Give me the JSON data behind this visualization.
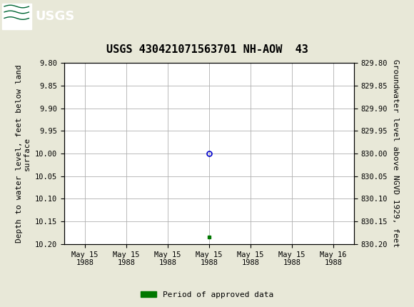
{
  "title": "USGS 430421071563701 NH-AOW  43",
  "ylabel_left": "Depth to water level, feet below land\nsurface",
  "ylabel_right": "Groundwater level above NGVD 1929, feet",
  "ylim_left": [
    9.8,
    10.2
  ],
  "ylim_right": [
    829.8,
    830.2
  ],
  "y_ticks_left": [
    9.8,
    9.85,
    9.9,
    9.95,
    10.0,
    10.05,
    10.1,
    10.15,
    10.2
  ],
  "y_ticks_right": [
    829.8,
    829.85,
    829.9,
    829.95,
    830.0,
    830.05,
    830.1,
    830.15,
    830.2
  ],
  "data_point_x": 3,
  "data_point_y": 10.0,
  "green_marker_x": 3,
  "green_marker_y": 10.185,
  "x_tick_labels": [
    "May 15\n1988",
    "May 15\n1988",
    "May 15\n1988",
    "May 15\n1988",
    "May 15\n1988",
    "May 15\n1988",
    "May 16\n1988"
  ],
  "x_ticks": [
    0,
    1,
    2,
    3,
    4,
    5,
    6
  ],
  "xlim": [
    -0.5,
    6.5
  ],
  "bg_color": "#e8e8d8",
  "plot_bg_color": "#ffffff",
  "grid_color": "#b0b0b0",
  "circle_color": "#0000cc",
  "green_color": "#007700",
  "header_bg": "#006633",
  "legend_label": "Period of approved data",
  "font_family": "monospace",
  "title_fontsize": 11,
  "axis_label_fontsize": 8,
  "tick_fontsize": 7.5,
  "legend_fontsize": 8
}
